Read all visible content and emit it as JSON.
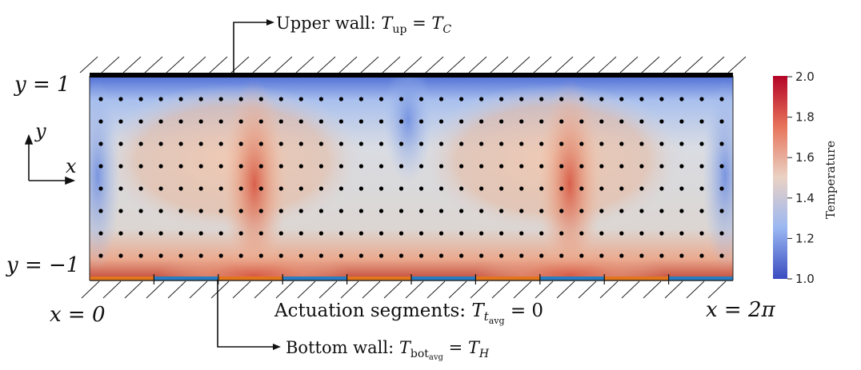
{
  "labels": {
    "y_top": "y = 1",
    "y_bottom": "y = −1",
    "x_left": "x = 0",
    "x_right": "x = 2π",
    "axis_y": "y",
    "axis_x": "x",
    "upper_wall": {
      "prefix": "Upper wall: ",
      "sym": "T",
      "sub": "up",
      "rest": " = ",
      "sym2": "T",
      "sub2": "C"
    },
    "actuation": {
      "prefix": "Actuation segments: ",
      "sym": "T",
      "sub": "t",
      "subsub": "avg",
      "rest": " = 0"
    },
    "bottom_wall": {
      "prefix": "Bottom wall: ",
      "sym": "T",
      "sub": "bot",
      "subsub": "avg",
      "rest": " = ",
      "sym2": "T",
      "sub2": "H"
    }
  },
  "colorbar": {
    "title": "Temperature",
    "ticks": [
      "2.0",
      "1.8",
      "1.6",
      "1.4",
      "1.2",
      "1.0"
    ],
    "colors": [
      "#b40426",
      "#e7745b",
      "#f2cbb7",
      "#c7d7f0",
      "#7da0f9",
      "#3b4cc0"
    ]
  },
  "probes": {
    "columns": 32,
    "rows": 8
  },
  "actuation_segments": {
    "count": 10,
    "colors": [
      "#e2761c",
      "#2a7dc0"
    ]
  }
}
